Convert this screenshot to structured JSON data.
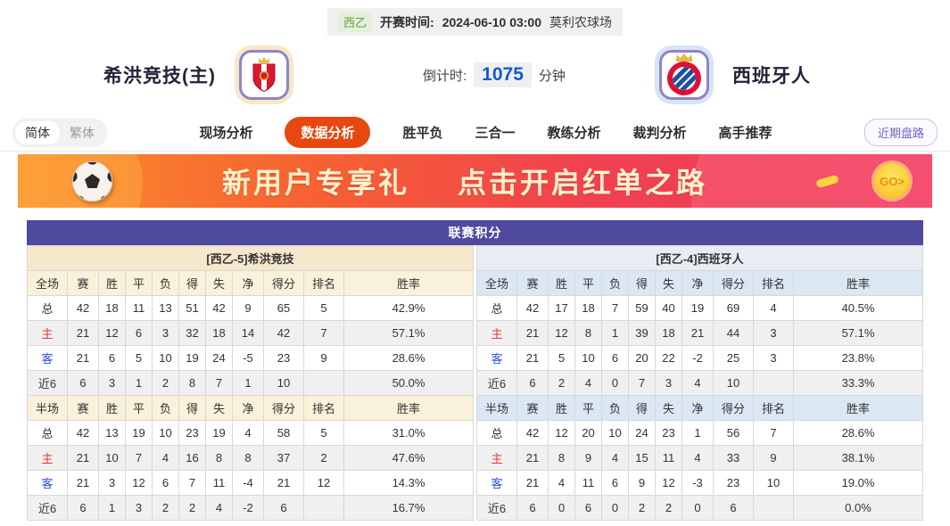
{
  "colors": {
    "header_purple": "#4f4a9e",
    "active_tab_orange": "#e8480f",
    "home_row_label_red": "#e03a3a",
    "away_row_label_blue": "#2b50d8",
    "countdown_blue": "#1459cf",
    "league_badge_green": "#64a03c"
  },
  "icons": {
    "ball": "soccer-ball",
    "home_crest": "sporting-gijon-crest",
    "away_crest": "espanyol-crest",
    "go": "go-arrow-button"
  },
  "top_bar": {
    "league": "西乙",
    "kickoff_label": "开赛时间:",
    "kickoff_time": "2024-06-10 03:00",
    "venue": "莫利农球场"
  },
  "match": {
    "home_name": "希洪竞技(主)",
    "away_name": "西班牙人",
    "countdown_label": "倒计时:",
    "countdown_value": "1075",
    "countdown_unit": "分钟"
  },
  "nav": {
    "lang": {
      "simplified": "简体",
      "traditional": "繁体"
    },
    "tabs": [
      {
        "label": "现场分析",
        "active": false
      },
      {
        "label": "数据分析",
        "active": true
      },
      {
        "label": "胜平负",
        "active": false
      },
      {
        "label": "三合一",
        "active": false
      },
      {
        "label": "教练分析",
        "active": false
      },
      {
        "label": "裁判分析",
        "active": false
      },
      {
        "label": "高手推荐",
        "active": false
      }
    ],
    "recent_button": "近期盘路"
  },
  "banner": {
    "part1": "新用户专享礼",
    "part2": "点击开启红单之路",
    "go": "GO>"
  },
  "standings": {
    "title": "联赛积分",
    "home": {
      "team_header": "[西乙-5]希洪竞技",
      "sections": [
        {
          "header": [
            "全场",
            "赛",
            "胜",
            "平",
            "负",
            "得",
            "失",
            "净",
            "得分",
            "排名",
            "胜率"
          ],
          "rows": [
            [
              "总",
              "42",
              "18",
              "11",
              "13",
              "51",
              "42",
              "9",
              "65",
              "5",
              "42.9%"
            ],
            [
              "主",
              "21",
              "12",
              "6",
              "3",
              "32",
              "18",
              "14",
              "42",
              "7",
              "57.1%"
            ],
            [
              "客",
              "21",
              "6",
              "5",
              "10",
              "19",
              "24",
              "-5",
              "23",
              "9",
              "28.6%"
            ],
            [
              "近6",
              "6",
              "3",
              "1",
              "2",
              "8",
              "7",
              "1",
              "10",
              "",
              "50.0%"
            ]
          ]
        },
        {
          "header": [
            "半场",
            "赛",
            "胜",
            "平",
            "负",
            "得",
            "失",
            "净",
            "得分",
            "排名",
            "胜率"
          ],
          "rows": [
            [
              "总",
              "42",
              "13",
              "19",
              "10",
              "23",
              "19",
              "4",
              "58",
              "5",
              "31.0%"
            ],
            [
              "主",
              "21",
              "10",
              "7",
              "4",
              "16",
              "8",
              "8",
              "37",
              "2",
              "47.6%"
            ],
            [
              "客",
              "21",
              "3",
              "12",
              "6",
              "7",
              "11",
              "-4",
              "21",
              "12",
              "14.3%"
            ],
            [
              "近6",
              "6",
              "1",
              "3",
              "2",
              "2",
              "4",
              "-2",
              "6",
              "",
              "16.7%"
            ]
          ]
        }
      ]
    },
    "away": {
      "team_header": "[西乙-4]西班牙人",
      "sections": [
        {
          "header": [
            "全场",
            "赛",
            "胜",
            "平",
            "负",
            "得",
            "失",
            "净",
            "得分",
            "排名",
            "胜率"
          ],
          "rows": [
            [
              "总",
              "42",
              "17",
              "18",
              "7",
              "59",
              "40",
              "19",
              "69",
              "4",
              "40.5%"
            ],
            [
              "主",
              "21",
              "12",
              "8",
              "1",
              "39",
              "18",
              "21",
              "44",
              "3",
              "57.1%"
            ],
            [
              "客",
              "21",
              "5",
              "10",
              "6",
              "20",
              "22",
              "-2",
              "25",
              "3",
              "23.8%"
            ],
            [
              "近6",
              "6",
              "2",
              "4",
              "0",
              "7",
              "3",
              "4",
              "10",
              "",
              "33.3%"
            ]
          ]
        },
        {
          "header": [
            "半场",
            "赛",
            "胜",
            "平",
            "负",
            "得",
            "失",
            "净",
            "得分",
            "排名",
            "胜率"
          ],
          "rows": [
            [
              "总",
              "42",
              "12",
              "20",
              "10",
              "24",
              "23",
              "1",
              "56",
              "7",
              "28.6%"
            ],
            [
              "主",
              "21",
              "8",
              "9",
              "4",
              "15",
              "11",
              "4",
              "33",
              "9",
              "38.1%"
            ],
            [
              "客",
              "21",
              "4",
              "11",
              "6",
              "9",
              "12",
              "-3",
              "23",
              "10",
              "19.0%"
            ],
            [
              "近6",
              "6",
              "0",
              "6",
              "0",
              "2",
              "2",
              "0",
              "6",
              "",
              "0.0%"
            ]
          ]
        }
      ]
    }
  }
}
